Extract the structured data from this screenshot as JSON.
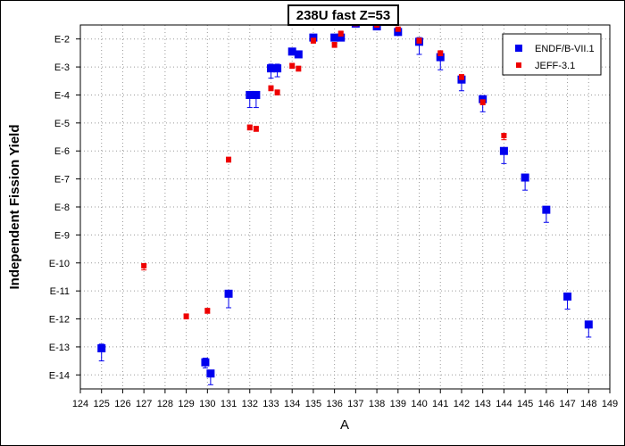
{
  "chart_data": {
    "type": "scatter",
    "title": "238U fast Z=53",
    "xlabel": "A",
    "ylabel": "Independent Fission Yield",
    "xlim": [
      124,
      149
    ],
    "ylim_exponent": [
      -14.5,
      -1.5
    ],
    "y_scale": "log",
    "grid": true,
    "legend_position": "top-right",
    "x_ticks": [
      "124",
      "125",
      "126",
      "127",
      "128",
      "129",
      "130",
      "131",
      "132",
      "133",
      "134",
      "135",
      "136",
      "137",
      "138",
      "139",
      "140",
      "141",
      "142",
      "143",
      "144",
      "145",
      "146",
      "147",
      "148",
      "149"
    ],
    "y_ticks": [
      {
        "exp": -2,
        "label": "E-2"
      },
      {
        "exp": -3,
        "label": "E-3"
      },
      {
        "exp": -4,
        "label": "E-4"
      },
      {
        "exp": -5,
        "label": "E-5"
      },
      {
        "exp": -6,
        "label": "E-6"
      },
      {
        "exp": -7,
        "label": "E-7"
      },
      {
        "exp": -8,
        "label": "E-8"
      },
      {
        "exp": -9,
        "label": "E-9"
      },
      {
        "exp": -10,
        "label": "E-10"
      },
      {
        "exp": -11,
        "label": "E-11"
      },
      {
        "exp": -12,
        "label": "E-12"
      },
      {
        "exp": -13,
        "label": "E-13"
      },
      {
        "exp": -14,
        "label": "E-14"
      }
    ],
    "series": [
      {
        "name": "ENDF/B-VII.1",
        "color": "#0000ee",
        "marker": "square-large",
        "points": [
          {
            "a": 125.0,
            "log10": -13.05,
            "err_lo": 0.45,
            "err_hi": 0.15
          },
          {
            "a": 129.9,
            "log10": -13.55,
            "err_lo": 0.2,
            "err_hi": 0.15
          },
          {
            "a": 130.15,
            "log10": -13.95,
            "err_lo": 0.4,
            "err_hi": 0.1
          },
          {
            "a": 131.0,
            "log10": -11.1,
            "err_lo": 0.5,
            "err_hi": 0.1
          },
          {
            "a": 132.0,
            "log10": -4.0,
            "err_lo": 0.45,
            "err_hi": 0.05
          },
          {
            "a": 132.3,
            "log10": -4.0,
            "err_lo": 0.45,
            "err_hi": 0.05
          },
          {
            "a": 133.0,
            "log10": -3.05,
            "err_lo": 0.35,
            "err_hi": 0.15
          },
          {
            "a": 133.3,
            "log10": -3.05,
            "err_lo": 0.3,
            "err_hi": 0.15
          },
          {
            "a": 134.0,
            "log10": -2.45,
            "err_lo": 0.05,
            "err_hi": 0.05
          },
          {
            "a": 134.3,
            "log10": -2.55,
            "err_lo": 0.1,
            "err_hi": 0.1
          },
          {
            "a": 135.0,
            "log10": -1.95,
            "err_lo": 0.05,
            "err_hi": 0.05
          },
          {
            "a": 136.0,
            "log10": -1.95,
            "err_lo": 0.05,
            "err_hi": 0.05
          },
          {
            "a": 136.3,
            "log10": -1.95,
            "err_lo": 0.05,
            "err_hi": 0.05
          },
          {
            "a": 137.0,
            "log10": -1.45,
            "err_lo": 0.05,
            "err_hi": 0.05
          },
          {
            "a": 138.0,
            "log10": -1.55,
            "err_lo": 0.05,
            "err_hi": 0.05
          },
          {
            "a": 139.0,
            "log10": -1.75,
            "err_lo": 0.05,
            "err_hi": 0.05
          },
          {
            "a": 140.0,
            "log10": -2.1,
            "err_lo": 0.45,
            "err_hi": 0.15
          },
          {
            "a": 141.0,
            "log10": -2.65,
            "err_lo": 0.45,
            "err_hi": 0.1
          },
          {
            "a": 142.0,
            "log10": -3.45,
            "err_lo": 0.4,
            "err_hi": 0.1
          },
          {
            "a": 143.0,
            "log10": -4.15,
            "err_lo": 0.45,
            "err_hi": 0.1
          },
          {
            "a": 144.0,
            "log10": -6.0,
            "err_lo": 0.45,
            "err_hi": 0.1
          },
          {
            "a": 145.0,
            "log10": -6.95,
            "err_lo": 0.45,
            "err_hi": 0.1
          },
          {
            "a": 146.0,
            "log10": -8.1,
            "err_lo": 0.45,
            "err_hi": 0.1
          },
          {
            "a": 147.0,
            "log10": -11.2,
            "err_lo": 0.45,
            "err_hi": 0.1
          },
          {
            "a": 148.0,
            "log10": -12.2,
            "err_lo": 0.45,
            "err_hi": 0.1
          }
        ]
      },
      {
        "name": "JEFF-3.1",
        "color": "#ee0000",
        "marker": "square-small",
        "points": [
          {
            "a": 127.0,
            "log10": -10.1,
            "err_lo": 0.15,
            "err_hi": 0.05
          },
          {
            "a": 129.0,
            "log10": -11.9,
            "err_lo": 0.1,
            "err_hi": 0.05
          },
          {
            "a": 130.0,
            "log10": -11.7,
            "err_lo": 0.1,
            "err_hi": 0.05
          },
          {
            "a": 131.0,
            "log10": -6.3,
            "err_lo": 0.1,
            "err_hi": 0.05
          },
          {
            "a": 132.0,
            "log10": -5.15,
            "err_lo": 0.1,
            "err_hi": 0.05
          },
          {
            "a": 132.3,
            "log10": -5.2,
            "err_lo": 0.1,
            "err_hi": 0.05
          },
          {
            "a": 133.0,
            "log10": -3.75,
            "err_lo": 0.1,
            "err_hi": 0.05
          },
          {
            "a": 133.3,
            "log10": -3.9,
            "err_lo": 0.1,
            "err_hi": 0.05
          },
          {
            "a": 134.0,
            "log10": -2.95,
            "err_lo": 0.1,
            "err_hi": 0.05
          },
          {
            "a": 134.3,
            "log10": -3.05,
            "err_lo": 0.1,
            "err_hi": 0.05
          },
          {
            "a": 135.0,
            "log10": -2.05,
            "err_lo": 0.1,
            "err_hi": 0.05
          },
          {
            "a": 136.0,
            "log10": -2.2,
            "err_lo": 0.1,
            "err_hi": 0.05
          },
          {
            "a": 136.3,
            "log10": -1.8,
            "err_lo": 0.1,
            "err_hi": 0.05
          },
          {
            "a": 137.0,
            "log10": -1.45,
            "err_lo": 0.05,
            "err_hi": 0.05
          },
          {
            "a": 138.0,
            "log10": -1.5,
            "err_lo": 0.05,
            "err_hi": 0.05
          },
          {
            "a": 139.0,
            "log10": -1.65,
            "err_lo": 0.05,
            "err_hi": 0.05
          },
          {
            "a": 140.0,
            "log10": -2.05,
            "err_lo": 0.1,
            "err_hi": 0.05
          },
          {
            "a": 141.0,
            "log10": -2.5,
            "err_lo": 0.1,
            "err_hi": 0.05
          },
          {
            "a": 142.0,
            "log10": -3.35,
            "err_lo": 0.1,
            "err_hi": 0.05
          },
          {
            "a": 143.0,
            "log10": -4.25,
            "err_lo": 0.1,
            "err_hi": 0.05
          },
          {
            "a": 144.0,
            "log10": -5.45,
            "err_lo": 0.15,
            "err_hi": 0.05
          }
        ]
      }
    ]
  }
}
